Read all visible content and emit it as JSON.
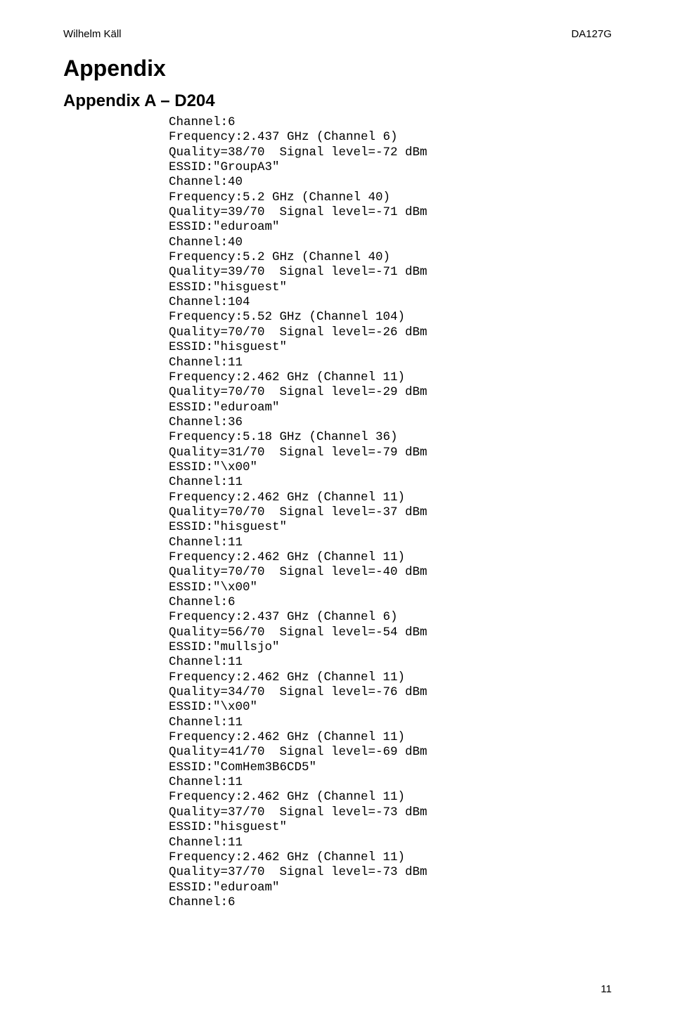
{
  "header": {
    "left": "Wilhelm Käll",
    "right": "DA127G"
  },
  "title": "Appendix",
  "subtitle": "Appendix A – D204",
  "pageNumber": "11",
  "entries": [
    {
      "channel": "Channel:6",
      "freq": "Frequency:2.437 GHz (Channel 6)",
      "qual": "Quality=38/70  Signal level=-72 dBm",
      "essid": "ESSID:\"GroupA3\""
    },
    {
      "channel": "Channel:40",
      "freq": "Frequency:5.2 GHz (Channel 40)",
      "qual": "Quality=39/70  Signal level=-71 dBm",
      "essid": "ESSID:\"eduroam\""
    },
    {
      "channel": "Channel:40",
      "freq": "Frequency:5.2 GHz (Channel 40)",
      "qual": "Quality=39/70  Signal level=-71 dBm",
      "essid": "ESSID:\"hisguest\""
    },
    {
      "channel": "Channel:104",
      "freq": "Frequency:5.52 GHz (Channel 104)",
      "qual": "Quality=70/70  Signal level=-26 dBm",
      "essid": "ESSID:\"hisguest\""
    },
    {
      "channel": "Channel:11",
      "freq": "Frequency:2.462 GHz (Channel 11)",
      "qual": "Quality=70/70  Signal level=-29 dBm",
      "essid": "ESSID:\"eduroam\""
    },
    {
      "channel": "Channel:36",
      "freq": "Frequency:5.18 GHz (Channel 36)",
      "qual": "Quality=31/70  Signal level=-79 dBm",
      "essid": "ESSID:\"\\x00\""
    },
    {
      "channel": "Channel:11",
      "freq": "Frequency:2.462 GHz (Channel 11)",
      "qual": "Quality=70/70  Signal level=-37 dBm",
      "essid": "ESSID:\"hisguest\""
    },
    {
      "channel": "Channel:11",
      "freq": "Frequency:2.462 GHz (Channel 11)",
      "qual": "Quality=70/70  Signal level=-40 dBm",
      "essid": "ESSID:\"\\x00\""
    },
    {
      "channel": "Channel:6",
      "freq": "Frequency:2.437 GHz (Channel 6)",
      "qual": "Quality=56/70  Signal level=-54 dBm",
      "essid": "ESSID:\"mullsjo\""
    },
    {
      "channel": "Channel:11",
      "freq": "Frequency:2.462 GHz (Channel 11)",
      "qual": "Quality=34/70  Signal level=-76 dBm",
      "essid": "ESSID:\"\\x00\""
    },
    {
      "channel": "Channel:11",
      "freq": "Frequency:2.462 GHz (Channel 11)",
      "qual": "Quality=41/70  Signal level=-69 dBm",
      "essid": "ESSID:\"ComHem3B6CD5\""
    },
    {
      "channel": "Channel:11",
      "freq": "Frequency:2.462 GHz (Channel 11)",
      "qual": "Quality=37/70  Signal level=-73 dBm",
      "essid": "ESSID:\"hisguest\""
    },
    {
      "channel": "Channel:11",
      "freq": "Frequency:2.462 GHz (Channel 11)",
      "qual": "Quality=37/70  Signal level=-73 dBm",
      "essid": "ESSID:\"eduroam\""
    }
  ],
  "trailing": "Channel:6"
}
